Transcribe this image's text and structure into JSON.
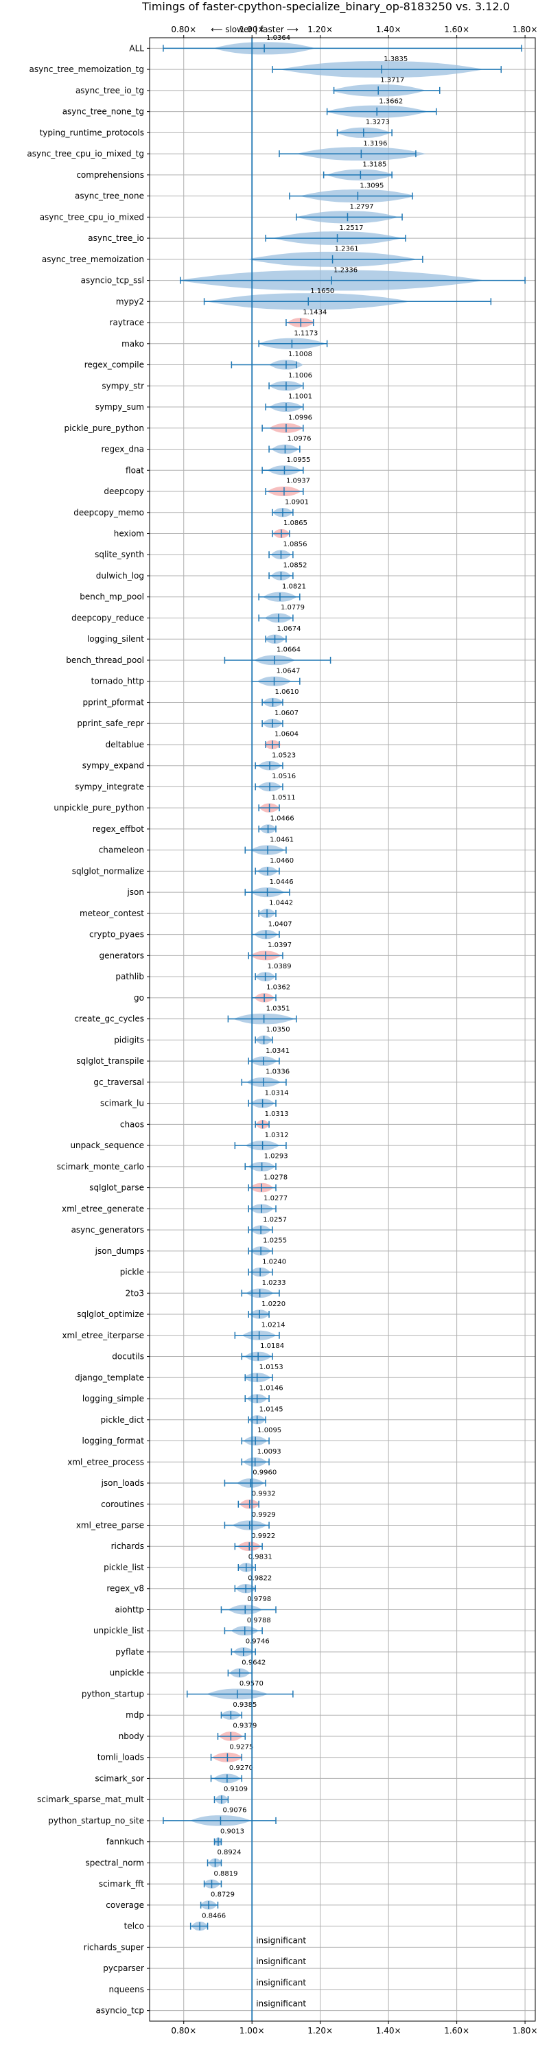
{
  "chart_data": {
    "type": "violin",
    "title": "Timings of faster-cpython-specialize_binary_op-8183250 vs. 3.12.0",
    "direction_label": "⟵ slower | faster ⟶",
    "x_ticks": [
      "0.80×",
      "1.00×",
      "1.20×",
      "1.40×",
      "1.60×",
      "1.80×"
    ],
    "x_tick_values": [
      0.8,
      1.0,
      1.2,
      1.4,
      1.6,
      1.8
    ],
    "xlim": [
      0.7,
      1.83
    ],
    "reference_line": 1.0,
    "grid": true,
    "colors": {
      "violin": "#9bbfdf",
      "highlight": "#f4a9a9",
      "whisker": "#1f77b4",
      "grid": "#b0b0b0"
    },
    "benchmarks": [
      {
        "name": "ALL",
        "label": "1.0364",
        "center": 1.036,
        "lo": 0.74,
        "hi": 1.79,
        "spread": 0.15,
        "h": "normal"
      },
      {
        "name": "async_tree_memoization_tg",
        "label": "1.3835",
        "center": 1.38,
        "lo": 1.06,
        "hi": 1.73,
        "spread": 0.3,
        "h": "normal"
      },
      {
        "name": "async_tree_io_tg",
        "label": "1.3717",
        "center": 1.37,
        "lo": 1.24,
        "hi": 1.55,
        "spread": 0.14,
        "h": "normal"
      },
      {
        "name": "async_tree_none_tg",
        "label": "1.3662",
        "center": 1.366,
        "lo": 1.22,
        "hi": 1.54,
        "spread": 0.15,
        "h": "normal"
      },
      {
        "name": "typing_runtime_protocols",
        "label": "1.3273",
        "center": 1.327,
        "lo": 1.25,
        "hi": 1.41,
        "spread": 0.08,
        "h": "normal"
      },
      {
        "name": "async_tree_cpu_io_mixed_tg",
        "label": "1.3196",
        "center": 1.32,
        "lo": 1.08,
        "hi": 1.48,
        "spread": 0.19,
        "h": "normal"
      },
      {
        "name": "comprehensions",
        "label": "1.3185",
        "center": 1.318,
        "lo": 1.21,
        "hi": 1.41,
        "spread": 0.1,
        "h": "normal"
      },
      {
        "name": "async_tree_none",
        "label": "1.3095",
        "center": 1.31,
        "lo": 1.11,
        "hi": 1.47,
        "spread": 0.17,
        "h": "normal"
      },
      {
        "name": "async_tree_cpu_io_mixed",
        "label": "1.2797",
        "center": 1.28,
        "lo": 1.13,
        "hi": 1.44,
        "spread": 0.15,
        "h": "normal"
      },
      {
        "name": "async_tree_io",
        "label": "1.2517",
        "center": 1.25,
        "lo": 1.04,
        "hi": 1.45,
        "spread": 0.19,
        "h": "normal"
      },
      {
        "name": "async_tree_memoization",
        "label": "1.2361",
        "center": 1.236,
        "lo": 1.0,
        "hi": 1.5,
        "spread": 0.25,
        "h": "normal"
      },
      {
        "name": "asyncio_tcp_ssl",
        "label": "1.2336",
        "center": 1.233,
        "lo": 0.79,
        "hi": 1.8,
        "spread": 0.45,
        "h": "normal"
      },
      {
        "name": "mypy2",
        "label": "1.1650",
        "center": 1.165,
        "lo": 0.86,
        "hi": 1.7,
        "spread": 0.3,
        "h": "normal"
      },
      {
        "name": "raytrace",
        "label": "1.1434",
        "center": 1.143,
        "lo": 1.1,
        "hi": 1.18,
        "spread": 0.04,
        "h": "red"
      },
      {
        "name": "mako",
        "label": "1.1173",
        "center": 1.117,
        "lo": 1.02,
        "hi": 1.22,
        "spread": 0.1,
        "h": "normal"
      },
      {
        "name": "regex_compile",
        "label": "1.1008",
        "center": 1.1,
        "lo": 0.94,
        "hi": 1.13,
        "spread": 0.05,
        "h": "normal"
      },
      {
        "name": "sympy_str",
        "label": "1.1006",
        "center": 1.1,
        "lo": 1.05,
        "hi": 1.15,
        "spread": 0.05,
        "h": "normal"
      },
      {
        "name": "sympy_sum",
        "label": "1.1001",
        "center": 1.1,
        "lo": 1.04,
        "hi": 1.15,
        "spread": 0.05,
        "h": "normal"
      },
      {
        "name": "pickle_pure_python",
        "label": "1.0996",
        "center": 1.1,
        "lo": 1.03,
        "hi": 1.15,
        "spread": 0.05,
        "h": "red"
      },
      {
        "name": "regex_dna",
        "label": "1.0976",
        "center": 1.097,
        "lo": 1.05,
        "hi": 1.14,
        "spread": 0.04,
        "h": "normal"
      },
      {
        "name": "float",
        "label": "1.0955",
        "center": 1.095,
        "lo": 1.03,
        "hi": 1.15,
        "spread": 0.05,
        "h": "normal"
      },
      {
        "name": "deepcopy",
        "label": "1.0937",
        "center": 1.094,
        "lo": 1.04,
        "hi": 1.15,
        "spread": 0.05,
        "h": "red"
      },
      {
        "name": "deepcopy_memo",
        "label": "1.0901",
        "center": 1.09,
        "lo": 1.06,
        "hi": 1.12,
        "spread": 0.03,
        "h": "normal"
      },
      {
        "name": "hexiom",
        "label": "1.0865",
        "center": 1.086,
        "lo": 1.06,
        "hi": 1.11,
        "spread": 0.025,
        "h": "red"
      },
      {
        "name": "sqlite_synth",
        "label": "1.0856",
        "center": 1.085,
        "lo": 1.05,
        "hi": 1.12,
        "spread": 0.03,
        "h": "normal"
      },
      {
        "name": "dulwich_log",
        "label": "1.0852",
        "center": 1.085,
        "lo": 1.05,
        "hi": 1.12,
        "spread": 0.03,
        "h": "normal"
      },
      {
        "name": "bench_mp_pool",
        "label": "1.0821",
        "center": 1.082,
        "lo": 1.02,
        "hi": 1.14,
        "spread": 0.05,
        "h": "normal"
      },
      {
        "name": "deepcopy_reduce",
        "label": "1.0779",
        "center": 1.078,
        "lo": 1.02,
        "hi": 1.12,
        "spread": 0.04,
        "h": "normal"
      },
      {
        "name": "logging_silent",
        "label": "1.0674",
        "center": 1.067,
        "lo": 1.04,
        "hi": 1.1,
        "spread": 0.03,
        "h": "normal"
      },
      {
        "name": "bench_thread_pool",
        "label": "1.0664",
        "center": 1.066,
        "lo": 0.92,
        "hi": 1.23,
        "spread": 0.06,
        "h": "normal"
      },
      {
        "name": "tornado_http",
        "label": "1.0647",
        "center": 1.065,
        "lo": 1.0,
        "hi": 1.14,
        "spread": 0.05,
        "h": "normal"
      },
      {
        "name": "pprint_pformat",
        "label": "1.0610",
        "center": 1.061,
        "lo": 1.03,
        "hi": 1.09,
        "spread": 0.03,
        "h": "normal"
      },
      {
        "name": "pprint_safe_repr",
        "label": "1.0607",
        "center": 1.06,
        "lo": 1.03,
        "hi": 1.09,
        "spread": 0.03,
        "h": "normal"
      },
      {
        "name": "deltablue",
        "label": "1.0604",
        "center": 1.06,
        "lo": 1.04,
        "hi": 1.08,
        "spread": 0.025,
        "h": "red"
      },
      {
        "name": "sympy_expand",
        "label": "1.0523",
        "center": 1.052,
        "lo": 1.01,
        "hi": 1.09,
        "spread": 0.035,
        "h": "normal"
      },
      {
        "name": "sympy_integrate",
        "label": "1.0516",
        "center": 1.052,
        "lo": 1.01,
        "hi": 1.09,
        "spread": 0.035,
        "h": "normal"
      },
      {
        "name": "unpickle_pure_python",
        "label": "1.0511",
        "center": 1.051,
        "lo": 1.02,
        "hi": 1.08,
        "spread": 0.03,
        "h": "red"
      },
      {
        "name": "regex_effbot",
        "label": "1.0466",
        "center": 1.047,
        "lo": 1.02,
        "hi": 1.07,
        "spread": 0.025,
        "h": "normal"
      },
      {
        "name": "chameleon",
        "label": "1.0461",
        "center": 1.046,
        "lo": 0.98,
        "hi": 1.1,
        "spread": 0.05,
        "h": "normal"
      },
      {
        "name": "sqlglot_normalize",
        "label": "1.0460",
        "center": 1.046,
        "lo": 1.01,
        "hi": 1.08,
        "spread": 0.03,
        "h": "normal"
      },
      {
        "name": "json",
        "label": "1.0446",
        "center": 1.045,
        "lo": 0.98,
        "hi": 1.11,
        "spread": 0.05,
        "h": "normal"
      },
      {
        "name": "meteor_contest",
        "label": "1.0442",
        "center": 1.044,
        "lo": 1.02,
        "hi": 1.07,
        "spread": 0.025,
        "h": "normal"
      },
      {
        "name": "crypto_pyaes",
        "label": "1.0407",
        "center": 1.041,
        "lo": 1.0,
        "hi": 1.08,
        "spread": 0.035,
        "h": "normal"
      },
      {
        "name": "generators",
        "label": "1.0397",
        "center": 1.04,
        "lo": 0.99,
        "hi": 1.09,
        "spread": 0.045,
        "h": "red"
      },
      {
        "name": "pathlib",
        "label": "1.0389",
        "center": 1.039,
        "lo": 1.01,
        "hi": 1.07,
        "spread": 0.03,
        "h": "normal"
      },
      {
        "name": "go",
        "label": "1.0362",
        "center": 1.036,
        "lo": 1.0,
        "hi": 1.07,
        "spread": 0.03,
        "h": "red"
      },
      {
        "name": "create_gc_cycles",
        "label": "1.0351",
        "center": 1.035,
        "lo": 0.93,
        "hi": 1.13,
        "spread": 0.09,
        "h": "normal"
      },
      {
        "name": "pidigits",
        "label": "1.0350",
        "center": 1.035,
        "lo": 1.01,
        "hi": 1.06,
        "spread": 0.025,
        "h": "normal"
      },
      {
        "name": "sqlglot_transpile",
        "label": "1.0341",
        "center": 1.034,
        "lo": 0.99,
        "hi": 1.08,
        "spread": 0.04,
        "h": "normal"
      },
      {
        "name": "gc_traversal",
        "label": "1.0336",
        "center": 1.034,
        "lo": 0.97,
        "hi": 1.1,
        "spread": 0.05,
        "h": "normal"
      },
      {
        "name": "scimark_lu",
        "label": "1.0314",
        "center": 1.031,
        "lo": 0.99,
        "hi": 1.07,
        "spread": 0.035,
        "h": "normal"
      },
      {
        "name": "chaos",
        "label": "1.0313",
        "center": 1.031,
        "lo": 1.01,
        "hi": 1.05,
        "spread": 0.02,
        "h": "red"
      },
      {
        "name": "unpack_sequence",
        "label": "1.0312",
        "center": 1.031,
        "lo": 0.95,
        "hi": 1.1,
        "spread": 0.05,
        "h": "normal"
      },
      {
        "name": "scimark_monte_carlo",
        "label": "1.0293",
        "center": 1.029,
        "lo": 0.98,
        "hi": 1.07,
        "spread": 0.04,
        "h": "normal"
      },
      {
        "name": "sqlglot_parse",
        "label": "1.0278",
        "center": 1.028,
        "lo": 0.99,
        "hi": 1.07,
        "spread": 0.035,
        "h": "red"
      },
      {
        "name": "xml_etree_generate",
        "label": "1.0277",
        "center": 1.028,
        "lo": 0.99,
        "hi": 1.07,
        "spread": 0.035,
        "h": "normal"
      },
      {
        "name": "async_generators",
        "label": "1.0257",
        "center": 1.026,
        "lo": 0.99,
        "hi": 1.06,
        "spread": 0.03,
        "h": "normal"
      },
      {
        "name": "json_dumps",
        "label": "1.0255",
        "center": 1.026,
        "lo": 0.99,
        "hi": 1.06,
        "spread": 0.03,
        "h": "normal"
      },
      {
        "name": "pickle",
        "label": "1.0240",
        "center": 1.024,
        "lo": 0.99,
        "hi": 1.06,
        "spread": 0.03,
        "h": "normal"
      },
      {
        "name": "2to3",
        "label": "1.0233",
        "center": 1.023,
        "lo": 0.97,
        "hi": 1.08,
        "spread": 0.04,
        "h": "normal"
      },
      {
        "name": "sqlglot_optimize",
        "label": "1.0220",
        "center": 1.022,
        "lo": 0.99,
        "hi": 1.05,
        "spread": 0.03,
        "h": "normal"
      },
      {
        "name": "xml_etree_iterparse",
        "label": "1.0214",
        "center": 1.021,
        "lo": 0.95,
        "hi": 1.08,
        "spread": 0.05,
        "h": "normal"
      },
      {
        "name": "docutils",
        "label": "1.0184",
        "center": 1.018,
        "lo": 0.97,
        "hi": 1.06,
        "spread": 0.04,
        "h": "normal"
      },
      {
        "name": "django_template",
        "label": "1.0153",
        "center": 1.015,
        "lo": 0.98,
        "hi": 1.06,
        "spread": 0.04,
        "h": "normal"
      },
      {
        "name": "logging_simple",
        "label": "1.0146",
        "center": 1.015,
        "lo": 0.98,
        "hi": 1.05,
        "spread": 0.03,
        "h": "normal"
      },
      {
        "name": "pickle_dict",
        "label": "1.0145",
        "center": 1.015,
        "lo": 0.99,
        "hi": 1.04,
        "spread": 0.025,
        "h": "normal"
      },
      {
        "name": "logging_format",
        "label": "1.0095",
        "center": 1.01,
        "lo": 0.97,
        "hi": 1.05,
        "spread": 0.035,
        "h": "normal"
      },
      {
        "name": "xml_etree_process",
        "label": "1.0093",
        "center": 1.009,
        "lo": 0.97,
        "hi": 1.05,
        "spread": 0.035,
        "h": "normal"
      },
      {
        "name": "json_loads",
        "label": "0.9960",
        "center": 0.996,
        "lo": 0.92,
        "hi": 1.04,
        "spread": 0.04,
        "h": "normal"
      },
      {
        "name": "coroutines",
        "label": "0.9932",
        "center": 0.993,
        "lo": 0.96,
        "hi": 1.02,
        "spread": 0.03,
        "h": "red"
      },
      {
        "name": "xml_etree_parse",
        "label": "0.9929",
        "center": 0.993,
        "lo": 0.92,
        "hi": 1.05,
        "spread": 0.05,
        "h": "normal"
      },
      {
        "name": "richards",
        "label": "0.9922",
        "center": 0.992,
        "lo": 0.95,
        "hi": 1.03,
        "spread": 0.035,
        "h": "red"
      },
      {
        "name": "pickle_list",
        "label": "0.9831",
        "center": 0.983,
        "lo": 0.96,
        "hi": 1.01,
        "spread": 0.025,
        "h": "normal"
      },
      {
        "name": "regex_v8",
        "label": "0.9822",
        "center": 0.982,
        "lo": 0.95,
        "hi": 1.01,
        "spread": 0.03,
        "h": "normal"
      },
      {
        "name": "aiohttp",
        "label": "0.9798",
        "center": 0.98,
        "lo": 0.91,
        "hi": 1.07,
        "spread": 0.05,
        "h": "normal"
      },
      {
        "name": "unpickle_list",
        "label": "0.9788",
        "center": 0.979,
        "lo": 0.92,
        "hi": 1.03,
        "spread": 0.04,
        "h": "normal"
      },
      {
        "name": "pyflate",
        "label": "0.9746",
        "center": 0.975,
        "lo": 0.94,
        "hi": 1.01,
        "spread": 0.03,
        "h": "normal"
      },
      {
        "name": "unpickle",
        "label": "0.9642",
        "center": 0.964,
        "lo": 0.93,
        "hi": 1.0,
        "spread": 0.03,
        "h": "normal"
      },
      {
        "name": "python_startup",
        "label": "0.9570",
        "center": 0.957,
        "lo": 0.81,
        "hi": 1.12,
        "spread": 0.09,
        "h": "normal"
      },
      {
        "name": "mdp",
        "label": "0.9385",
        "center": 0.938,
        "lo": 0.91,
        "hi": 0.97,
        "spread": 0.03,
        "h": "normal"
      },
      {
        "name": "nbody",
        "label": "0.9379",
        "center": 0.938,
        "lo": 0.9,
        "hi": 0.98,
        "spread": 0.035,
        "h": "red"
      },
      {
        "name": "tomli_loads",
        "label": "0.9275",
        "center": 0.928,
        "lo": 0.88,
        "hi": 0.97,
        "spread": 0.045,
        "h": "red"
      },
      {
        "name": "scimark_sor",
        "label": "0.9270",
        "center": 0.927,
        "lo": 0.88,
        "hi": 0.97,
        "spread": 0.04,
        "h": "normal"
      },
      {
        "name": "scimark_sparse_mat_mult",
        "label": "0.9109",
        "center": 0.911,
        "lo": 0.89,
        "hi": 0.93,
        "spread": 0.02,
        "h": "normal"
      },
      {
        "name": "python_startup_no_site",
        "label": "0.9076",
        "center": 0.908,
        "lo": 0.74,
        "hi": 1.07,
        "spread": 0.09,
        "h": "normal"
      },
      {
        "name": "fannkuch",
        "label": "0.9013",
        "center": 0.901,
        "lo": 0.89,
        "hi": 0.91,
        "spread": 0.012,
        "h": "normal"
      },
      {
        "name": "spectral_norm",
        "label": "0.8924",
        "center": 0.892,
        "lo": 0.87,
        "hi": 0.91,
        "spread": 0.02,
        "h": "normal"
      },
      {
        "name": "scimark_fft",
        "label": "0.8819",
        "center": 0.882,
        "lo": 0.86,
        "hi": 0.91,
        "spread": 0.025,
        "h": "normal"
      },
      {
        "name": "coverage",
        "label": "0.8729",
        "center": 0.873,
        "lo": 0.85,
        "hi": 0.9,
        "spread": 0.025,
        "h": "normal"
      },
      {
        "name": "telco",
        "label": "0.8466",
        "center": 0.847,
        "lo": 0.82,
        "hi": 0.87,
        "spread": 0.025,
        "h": "normal"
      },
      {
        "name": "richards_super",
        "label": "insignificant",
        "center": null,
        "lo": null,
        "hi": null,
        "spread": null,
        "h": "none"
      },
      {
        "name": "pycparser",
        "label": "insignificant",
        "center": null,
        "lo": null,
        "hi": null,
        "spread": null,
        "h": "none"
      },
      {
        "name": "nqueens",
        "label": "insignificant",
        "center": null,
        "lo": null,
        "hi": null,
        "spread": null,
        "h": "none"
      },
      {
        "name": "asyncio_tcp",
        "label": "insignificant",
        "center": null,
        "lo": null,
        "hi": null,
        "spread": null,
        "h": "none"
      }
    ]
  }
}
